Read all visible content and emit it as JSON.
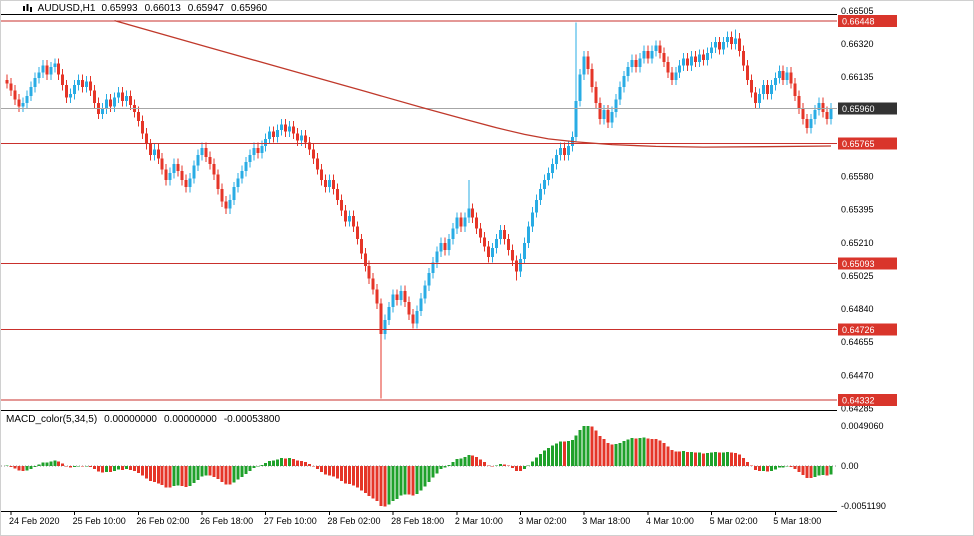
{
  "header": {
    "symbol": "AUDUSD,H1",
    "open": "0.65993",
    "high": "0.66013",
    "low": "0.65947",
    "close": "0.65960"
  },
  "indicator": {
    "name": "MACD_color(5,34,5)",
    "values": [
      "0.00000000",
      "0.00000000",
      "-0.00053800"
    ]
  },
  "colors": {
    "up_candle": "#29ace4",
    "down_candle": "#e53528",
    "level_line": "#c9302c",
    "trend_line": "#c0392b",
    "bid_line": "#a6a6a6",
    "badge_red": "#d9352b",
    "badge_dark": "#333333",
    "macd_up": "#1fa12b",
    "macd_down": "#e53528",
    "text": "#000000",
    "background": "#ffffff"
  },
  "chart_data": [
    {
      "type": "candlestick",
      "symbol": "AUDUSD",
      "timeframe": "H1",
      "ylim": [
        0.6428,
        0.6648
      ],
      "y_ticks": [
        "0.66505",
        "0.66320",
        "0.66135",
        "0.65580",
        "0.65395",
        "0.65210",
        "0.65025",
        "0.64840",
        "0.64655",
        "0.64470",
        "0.64285"
      ],
      "y_badges": [
        "0.66448",
        "0.65765",
        "0.65093",
        "0.64726",
        "0.64332"
      ],
      "y_current": "0.65960",
      "levels": [
        0.66448,
        0.65765,
        0.65093,
        0.64726,
        0.64332
      ],
      "current_price": 0.6596,
      "x_labels": [
        "24 Feb 2020",
        "25 Feb 10:00",
        "26 Feb 02:00",
        "26 Feb 18:00",
        "27 Feb 10:00",
        "28 Feb 02:00",
        "28 Feb 18:00",
        "2 Mar 10:00",
        "3 Mar 02:00",
        "3 Mar 18:00",
        "4 Mar 10:00",
        "5 Mar 02:00",
        "5 Mar 18:00"
      ],
      "x_label_indices": [
        1,
        17,
        33,
        49,
        65,
        81,
        97,
        113,
        129,
        145,
        161,
        177,
        193
      ],
      "first_open": 0.6612,
      "closes": [
        0.661,
        0.6606,
        0.6601,
        0.6597,
        0.6599,
        0.6603,
        0.6608,
        0.6613,
        0.6616,
        0.662,
        0.6615,
        0.6619,
        0.6621,
        0.6615,
        0.6609,
        0.6602,
        0.6604,
        0.6609,
        0.6612,
        0.6608,
        0.6611,
        0.6606,
        0.6599,
        0.6593,
        0.6596,
        0.6601,
        0.6597,
        0.6602,
        0.6605,
        0.66,
        0.6603,
        0.6598,
        0.6594,
        0.6589,
        0.6582,
        0.6576,
        0.657,
        0.6573,
        0.6568,
        0.6562,
        0.6556,
        0.656,
        0.6565,
        0.6561,
        0.6556,
        0.6552,
        0.6557,
        0.6564,
        0.657,
        0.6574,
        0.6569,
        0.6565,
        0.6559,
        0.6551,
        0.6544,
        0.654,
        0.6545,
        0.6552,
        0.6557,
        0.6561,
        0.6566,
        0.657,
        0.6574,
        0.6571,
        0.6575,
        0.6579,
        0.6583,
        0.658,
        0.6584,
        0.6587,
        0.6583,
        0.6586,
        0.6582,
        0.6578,
        0.6581,
        0.6577,
        0.6573,
        0.6568,
        0.6562,
        0.6556,
        0.6552,
        0.6556,
        0.6551,
        0.6545,
        0.6539,
        0.6533,
        0.6536,
        0.653,
        0.6523,
        0.6515,
        0.6508,
        0.6501,
        0.6495,
        0.6487,
        0.647,
        0.6478,
        0.6485,
        0.6492,
        0.6489,
        0.6494,
        0.6488,
        0.6481,
        0.6476,
        0.6483,
        0.649,
        0.6497,
        0.6504,
        0.651,
        0.6516,
        0.6521,
        0.6517,
        0.6523,
        0.6529,
        0.6535,
        0.653,
        0.6535,
        0.654,
        0.6535,
        0.6529,
        0.6524,
        0.6519,
        0.6513,
        0.6518,
        0.6523,
        0.6528,
        0.6523,
        0.6517,
        0.6511,
        0.6505,
        0.6512,
        0.6521,
        0.653,
        0.6538,
        0.6545,
        0.6551,
        0.6556,
        0.656,
        0.6565,
        0.657,
        0.6574,
        0.657,
        0.6575,
        0.658,
        0.66,
        0.6615,
        0.6625,
        0.6618,
        0.6608,
        0.6599,
        0.659,
        0.6595,
        0.6588,
        0.6594,
        0.6601,
        0.6608,
        0.6614,
        0.6619,
        0.6623,
        0.6619,
        0.6624,
        0.6628,
        0.6624,
        0.6628,
        0.6631,
        0.6627,
        0.6622,
        0.6616,
        0.6612,
        0.6616,
        0.662,
        0.6624,
        0.662,
        0.6625,
        0.6622,
        0.6626,
        0.6623,
        0.6627,
        0.663,
        0.6633,
        0.6629,
        0.6633,
        0.6636,
        0.6632,
        0.6635,
        0.6628,
        0.662,
        0.6612,
        0.6605,
        0.6599,
        0.6604,
        0.6609,
        0.6604,
        0.6609,
        0.6613,
        0.6617,
        0.6612,
        0.6616,
        0.661,
        0.6603,
        0.6596,
        0.659,
        0.6585,
        0.659,
        0.6595,
        0.6599,
        0.6594,
        0.659,
        0.6596
      ],
      "wick_overrides": {
        "94": {
          "low": 0.6434
        },
        "102": {
          "low": 0.6473
        },
        "116": {
          "high": 0.6556
        },
        "128": {
          "low": 0.65
        },
        "143": {
          "high": 0.6644
        },
        "183": {
          "high": 0.664
        }
      },
      "trendline_points": [
        [
          27,
          0.6645
        ],
        [
          50,
          0.66305
        ],
        [
          70,
          0.6618
        ],
        [
          90,
          0.66055
        ],
        [
          105,
          0.6596
        ],
        [
          115,
          0.659
        ],
        [
          123,
          0.65852
        ],
        [
          130,
          0.65815
        ],
        [
          136,
          0.6579
        ],
        [
          143,
          0.65773
        ],
        [
          152,
          0.65758
        ],
        [
          163,
          0.65748
        ],
        [
          175,
          0.65744
        ],
        [
          190,
          0.65746
        ],
        [
          207,
          0.6575
        ]
      ]
    },
    {
      "type": "bar",
      "name": "MACD_color(5,34,5) histogram",
      "derivation": "EMA(5)-EMA(34) of closes, bars colored green when rising, red when falling",
      "ylim": [
        -0.005119,
        0.004906
      ],
      "y_ticks": [
        "0.0049060",
        "0.00",
        "-0.0051190"
      ],
      "peak_value": 0.004906,
      "trough_value": -0.0045,
      "last_value": -0.000538
    }
  ]
}
